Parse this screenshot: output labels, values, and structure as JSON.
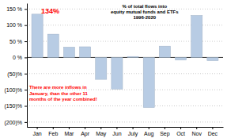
{
  "chart_data": {
    "type": "bar",
    "title": "% of total flows into\nequity mutual funds and ETFs\n1996-2020",
    "categories": [
      "Jan",
      "Feb",
      "Mar",
      "Apr",
      "May",
      "Jun",
      "July",
      "Aug",
      "Sep",
      "Oct",
      "Nov",
      "Dec"
    ],
    "values": [
      134,
      72,
      32,
      33,
      -68,
      -98,
      3,
      -155,
      35,
      -8,
      130,
      -10
    ],
    "color": "#b8cce4",
    "ylim": [
      -215,
      168
    ],
    "yticks": [
      {
        "value": 150,
        "label": "150 %"
      },
      {
        "value": 100,
        "label": "100 %"
      },
      {
        "value": 50,
        "label": "50 %"
      },
      {
        "value": 0,
        "label": "0 %"
      },
      {
        "value": -50,
        "label": "(50)%"
      },
      {
        "value": -100,
        "label": "(100)%"
      },
      {
        "value": -150,
        "label": "(150)%"
      },
      {
        "value": -200,
        "label": "(200)%"
      }
    ],
    "grid": true,
    "annotations": [
      "134%",
      "There are more inflows in\nJanuary, than the other 11\nmonths of the year combined!"
    ]
  }
}
